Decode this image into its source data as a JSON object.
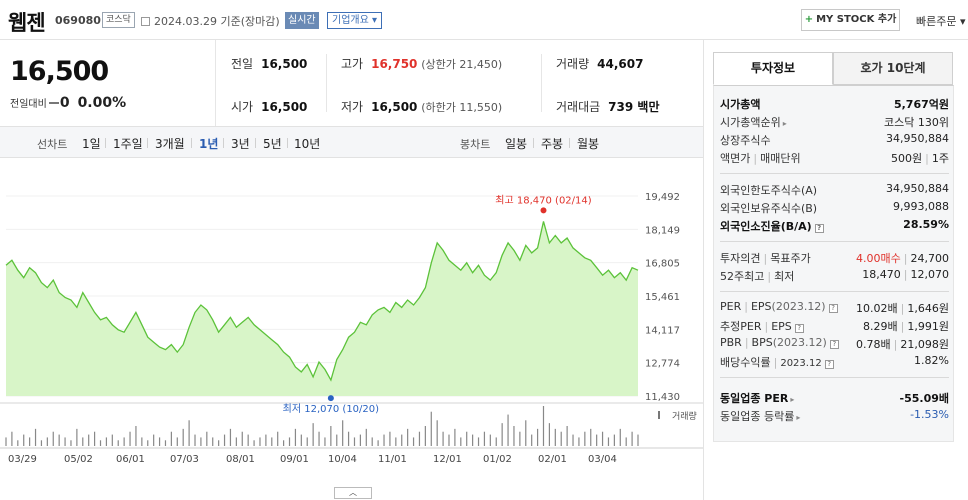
{
  "header": {
    "stock_name": "웹젠",
    "stock_code": "069080",
    "market_badge": "코스닥",
    "date_text": "2024.03.29  기준(장마감)",
    "realtime_label": "실시간",
    "company_label": "기업개요 ▾",
    "mystock_label": "MY STOCK 추가",
    "mystock_plus": "+",
    "quick_order_label": "빠른주문 ▾"
  },
  "price": {
    "current": "16,500",
    "change_label": "전일대비",
    "change_value": "0",
    "change_pct": "0.00%"
  },
  "quote": {
    "prev_label": "전일",
    "prev_value": "16,500",
    "high_label": "고가",
    "high_value": "16,750",
    "upper_limit": "(상한가 21,450)",
    "volume_label": "거래량",
    "volume_value": "44,607",
    "open_label": "시가",
    "open_value": "16,500",
    "low_label": "저가",
    "low_value": "16,500",
    "lower_limit": "(하한가 11,550)",
    "amount_label": "거래대금",
    "amount_value": "739 백만"
  },
  "tabs": {
    "line_label": "선차트",
    "line": [
      "1일",
      "1주일",
      "3개월",
      "1년",
      "3년",
      "5년",
      "10년"
    ],
    "active": "1년",
    "candle_label": "봉차트",
    "candle": [
      "일봉",
      "주봉",
      "월봉"
    ]
  },
  "chart_data": {
    "type": "area",
    "y_ticks": [
      "19,492",
      "18,149",
      "16,805",
      "15,461",
      "14,117",
      "12,774",
      "11,430"
    ],
    "y_range": [
      11430,
      19492
    ],
    "x_ticks": [
      "03/29",
      "05/02",
      "06/01",
      "07/03",
      "08/01",
      "09/01",
      "10/04",
      "11/01",
      "12/01",
      "01/02",
      "02/01",
      "03/04"
    ],
    "max_label": "최고 18,470 (02/14)",
    "min_label": "최저 12,070 (10/20)",
    "volume_label": "거래량",
    "fill_color": "#d8f5c8",
    "line_color": "#5cc23a",
    "max_color": "#e0322b",
    "min_color": "#2a63c2",
    "prices": [
      16700,
      16900,
      16500,
      16200,
      16600,
      16400,
      16000,
      15800,
      16100,
      15600,
      15400,
      15300,
      15000,
      15600,
      15200,
      14800,
      14500,
      14600,
      14300,
      14100,
      14000,
      14400,
      14800,
      14300,
      13800,
      13600,
      13400,
      13300,
      13500,
      13200,
      13500,
      14200,
      14800,
      15100,
      14900,
      14500,
      14000,
      14300,
      14600,
      14200,
      14400,
      14600,
      14300,
      14100,
      13900,
      13700,
      13500,
      13200,
      13000,
      12600,
      12400,
      12700,
      12200,
      12800,
      12500,
      12070,
      12900,
      13300,
      13800,
      14000,
      14400,
      14300,
      14700,
      14900,
      15000,
      14800,
      15200,
      15000,
      15300,
      15100,
      15400,
      15800,
      16800,
      17600,
      17300,
      16900,
      16700,
      16500,
      16800,
      16400,
      16700,
      16300,
      16100,
      16400,
      17100,
      17600,
      17300,
      16900,
      17500,
      17200,
      17400,
      18470,
      17600,
      17900,
      17600,
      17800,
      17400,
      17200,
      17000,
      16900,
      16600,
      16300,
      16500,
      16200,
      16400,
      16100,
      16600,
      16500
    ],
    "volumes": [
      3,
      5,
      2,
      4,
      3,
      6,
      2,
      3,
      5,
      4,
      3,
      2,
      6,
      3,
      4,
      5,
      2,
      3,
      4,
      2,
      3,
      5,
      7,
      3,
      2,
      4,
      3,
      2,
      5,
      3,
      6,
      9,
      4,
      3,
      5,
      3,
      2,
      4,
      6,
      3,
      5,
      4,
      2,
      3,
      4,
      3,
      5,
      2,
      3,
      6,
      4,
      3,
      8,
      5,
      3,
      7,
      4,
      9,
      5,
      3,
      4,
      6,
      3,
      2,
      4,
      5,
      3,
      4,
      6,
      3,
      5,
      7,
      12,
      9,
      5,
      4,
      6,
      3,
      5,
      4,
      3,
      5,
      4,
      3,
      8,
      11,
      7,
      5,
      9,
      4,
      6,
      14,
      8,
      6,
      5,
      7,
      4,
      3,
      5,
      6,
      4,
      5,
      3,
      4,
      6,
      3,
      5,
      4
    ]
  },
  "panel": {
    "tab_invest": "투자정보",
    "tab_hoga": "호가 10단계",
    "mcap_label": "시가총액",
    "mcap_value": "5,767억원",
    "mcap_rank_label": "시가총액순위",
    "mcap_rank_value": "코스닥 130위",
    "shares_label": "상장주식수",
    "shares_value": "34,950,884",
    "par_label": "액면가",
    "unit_label": "매매단위",
    "par_value": "500원",
    "unit_value": "1주",
    "foreign_limit_label": "외국인한도주식수(A)",
    "foreign_limit_value": "34,950,884",
    "foreign_hold_label": "외국인보유주식수(B)",
    "foreign_hold_value": "9,993,088",
    "foreign_ratio_label": "외국인소진율(B/A)",
    "foreign_ratio_value": "28.59%",
    "opinion_label": "투자의견",
    "target_label": "목표주가",
    "opinion_value": "4.00매수",
    "target_value": "24,700",
    "w52_high_label": "52주최고",
    "w52_low_label": "최저",
    "w52_high_value": "18,470",
    "w52_low_value": "12,070",
    "per_label": "PER",
    "eps_label": "EPS",
    "eps_year": "(2023.12)",
    "per_value": "10.02배",
    "eps_value": "1,646원",
    "est_per_label": "추정PER",
    "est_eps_label": "EPS",
    "est_per_value": "8.29배",
    "est_eps_value": "1,991원",
    "pbr_label": "PBR",
    "bps_label": "BPS",
    "bps_year": "(2023.12)",
    "pbr_value": "0.78배",
    "bps_value": "21,098원",
    "div_label": "배당수익률",
    "div_year": "2023.12",
    "div_value": "1.82%",
    "sector_per_label": "동일업종 PER",
    "sector_per_value": "-55.09배",
    "sector_rate_label": "동일업종 등락률",
    "sector_rate_value": "-1.53%"
  }
}
